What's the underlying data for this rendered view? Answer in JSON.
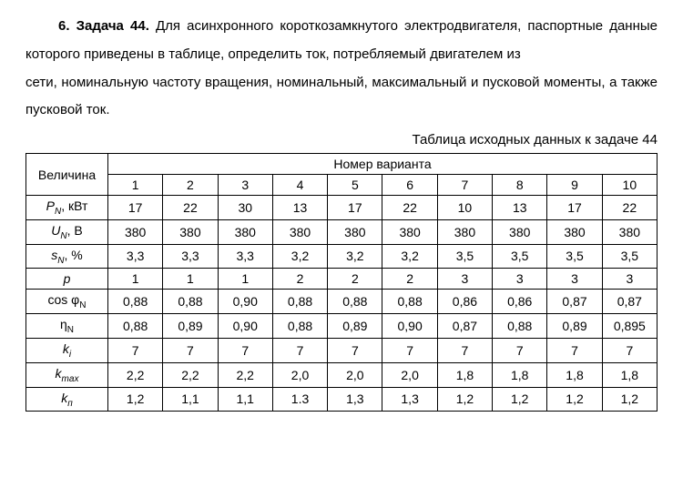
{
  "problem": {
    "number_label": "6. Задача 44.",
    "text_p1": " Для асинхронного короткозамкнутого электродвигателя, паспортные данные которого приведены в таблице, определить ток, потребляемый двигателем из",
    "text_p2": "сети, номинальную частоту вращения, номинальный, максимальный и пусковой моменты, а также пусковой ток."
  },
  "table": {
    "caption": "Таблица исходных данных к задаче 44",
    "row_header_label": "Величина",
    "col_header_label": "Номер варианта",
    "columns": [
      "1",
      "2",
      "3",
      "4",
      "5",
      "6",
      "7",
      "8",
      "9",
      "10"
    ],
    "rows": [
      {
        "label": "P_N, кВт",
        "label_html": "<span class='italic'>P<span class='sub'>N</span></span>, кВт",
        "cells": [
          "17",
          "22",
          "30",
          "13",
          "17",
          "22",
          "10",
          "13",
          "17",
          "22"
        ]
      },
      {
        "label": "U_N, В",
        "label_html": "<span class='italic'>U<span class='sub'>N</span></span>, В",
        "cells": [
          "380",
          "380",
          "380",
          "380",
          "380",
          "380",
          "380",
          "380",
          "380",
          "380"
        ]
      },
      {
        "label": "s_N, %",
        "label_html": "<span class='italic'>s<span class='sub'>N</span></span>, %",
        "cells": [
          "3,3",
          "3,3",
          "3,3",
          "3,2",
          "3,2",
          "3,2",
          "3,5",
          "3,5",
          "3,5",
          "3,5"
        ]
      },
      {
        "label": "p",
        "label_html": "<span class='italic'>p</span>",
        "cells": [
          "1",
          "1",
          "1",
          "2",
          "2",
          "2",
          "3",
          "3",
          "3",
          "3"
        ]
      },
      {
        "label": "cos φ_N",
        "label_html": "cos φ<span class='sub'>N</span>",
        "cells": [
          "0,88",
          "0,88",
          "0,90",
          "0,88",
          "0,88",
          "0,88",
          "0,86",
          "0,86",
          "0,87",
          "0,87"
        ]
      },
      {
        "label": "η_N",
        "label_html": "η<span class='sub'>N</span>",
        "cells": [
          "0,88",
          "0,89",
          "0,90",
          "0,88",
          "0,89",
          "0,90",
          "0,87",
          "0,88",
          "0,89",
          "0,895"
        ]
      },
      {
        "label": "k_i",
        "label_html": "<span class='italic'>k<span class='sub'>i</span></span>",
        "cells": [
          "7",
          "7",
          "7",
          "7",
          "7",
          "7",
          "7",
          "7",
          "7",
          "7"
        ]
      },
      {
        "label": "k_max",
        "label_html": "<span class='italic'>k<span class='sub'>max</span></span>",
        "cells": [
          "2,2",
          "2,2",
          "2,2",
          "2,0",
          "2,0",
          "2,0",
          "1,8",
          "1,8",
          "1,8",
          "1,8"
        ]
      },
      {
        "label": "k_п",
        "label_html": "<span class='italic'>k<span class='sub'>п</span></span>",
        "cells": [
          "1,2",
          "1,1",
          "1,1",
          "1.3",
          "1,3",
          "1,3",
          "1,2",
          "1,2",
          "1,2",
          "1,2"
        ]
      }
    ]
  }
}
